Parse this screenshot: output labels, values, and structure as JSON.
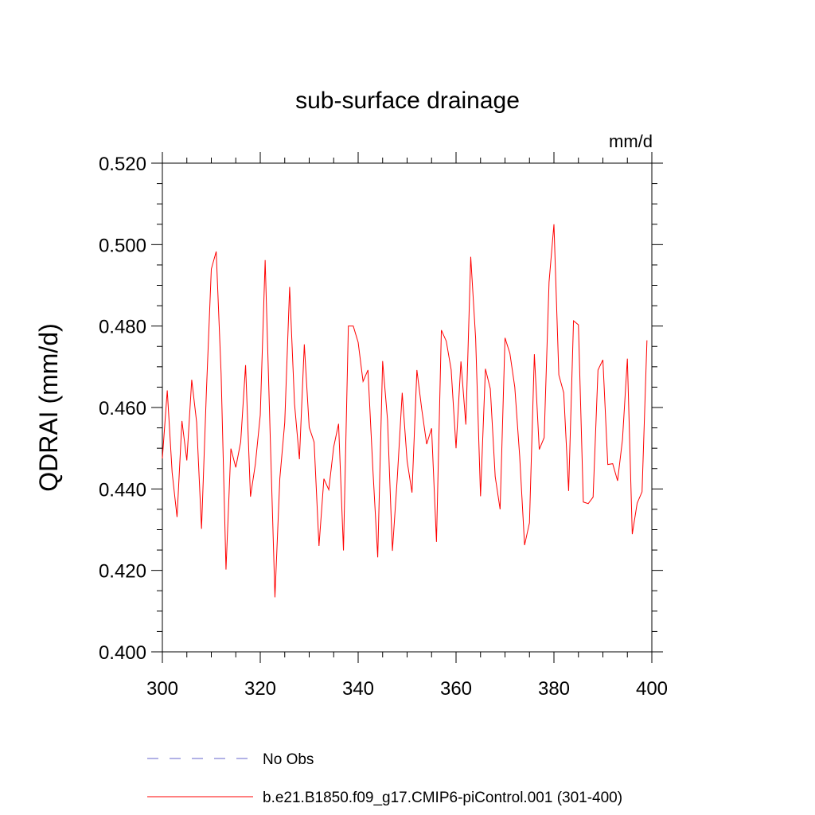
{
  "chart_data": {
    "type": "line",
    "title": "sub-surface drainage",
    "units": "mm/d",
    "xlabel": "",
    "ylabel": "QDRAI  (mm/d)",
    "xlim": [
      300,
      400
    ],
    "ylim": [
      0.4,
      0.52
    ],
    "x_ticks": [
      300,
      320,
      340,
      360,
      380,
      400
    ],
    "x_tick_labels": [
      "300",
      "320",
      "340",
      "360",
      "380",
      "400"
    ],
    "y_ticks": [
      0.4,
      0.42,
      0.44,
      0.46,
      0.48,
      0.5,
      0.52
    ],
    "y_tick_labels": [
      "0.400",
      "0.420",
      "0.440",
      "0.460",
      "0.480",
      "0.500",
      "0.520"
    ],
    "series": [
      {
        "name": "b.e21.B1850.f09_g17.CMIP6-piControl.001 (301-400)",
        "color": "#ff0000",
        "style": "solid",
        "x_start": 300,
        "values": [
          0.4475,
          0.4642,
          0.444,
          0.4331,
          0.4567,
          0.447,
          0.4668,
          0.4564,
          0.4302,
          0.464,
          0.494,
          0.4983,
          0.4684,
          0.4202,
          0.4499,
          0.4453,
          0.4515,
          0.4704,
          0.4381,
          0.4461,
          0.4581,
          0.4962,
          0.4544,
          0.4134,
          0.4426,
          0.4563,
          0.4896,
          0.4609,
          0.4473,
          0.4755,
          0.4551,
          0.4515,
          0.426,
          0.4425,
          0.4398,
          0.4503,
          0.456,
          0.4249,
          0.48,
          0.48,
          0.476,
          0.4664,
          0.4692,
          0.445,
          0.4232,
          0.4714,
          0.457,
          0.4248,
          0.4428,
          0.4636,
          0.4469,
          0.4391,
          0.4692,
          0.4595,
          0.451,
          0.4549,
          0.427,
          0.479,
          0.4763,
          0.4693,
          0.45,
          0.4713,
          0.4558,
          0.497,
          0.477,
          0.4382,
          0.4695,
          0.4646,
          0.443,
          0.435,
          0.4771,
          0.4733,
          0.465,
          0.448,
          0.4262,
          0.4317,
          0.4731,
          0.4497,
          0.4526,
          0.4908,
          0.505,
          0.468,
          0.4636,
          0.4395,
          0.4813,
          0.4803,
          0.4368,
          0.4364,
          0.438,
          0.4692,
          0.4717,
          0.446,
          0.4462,
          0.442,
          0.4521,
          0.472,
          0.4289,
          0.4365,
          0.4393,
          0.4765
        ]
      },
      {
        "name": "No Obs",
        "color": "#6666cc",
        "style": "dashed",
        "values": []
      }
    ],
    "legend": {
      "placement": "bottom",
      "entries": [
        {
          "label": "No Obs",
          "color": "#6666cc",
          "style": "dashed"
        },
        {
          "label": "b.e21.B1850.f09_g17.CMIP6-piControl.001 (301-400)",
          "color": "#ff0000",
          "style": "solid"
        }
      ]
    }
  }
}
